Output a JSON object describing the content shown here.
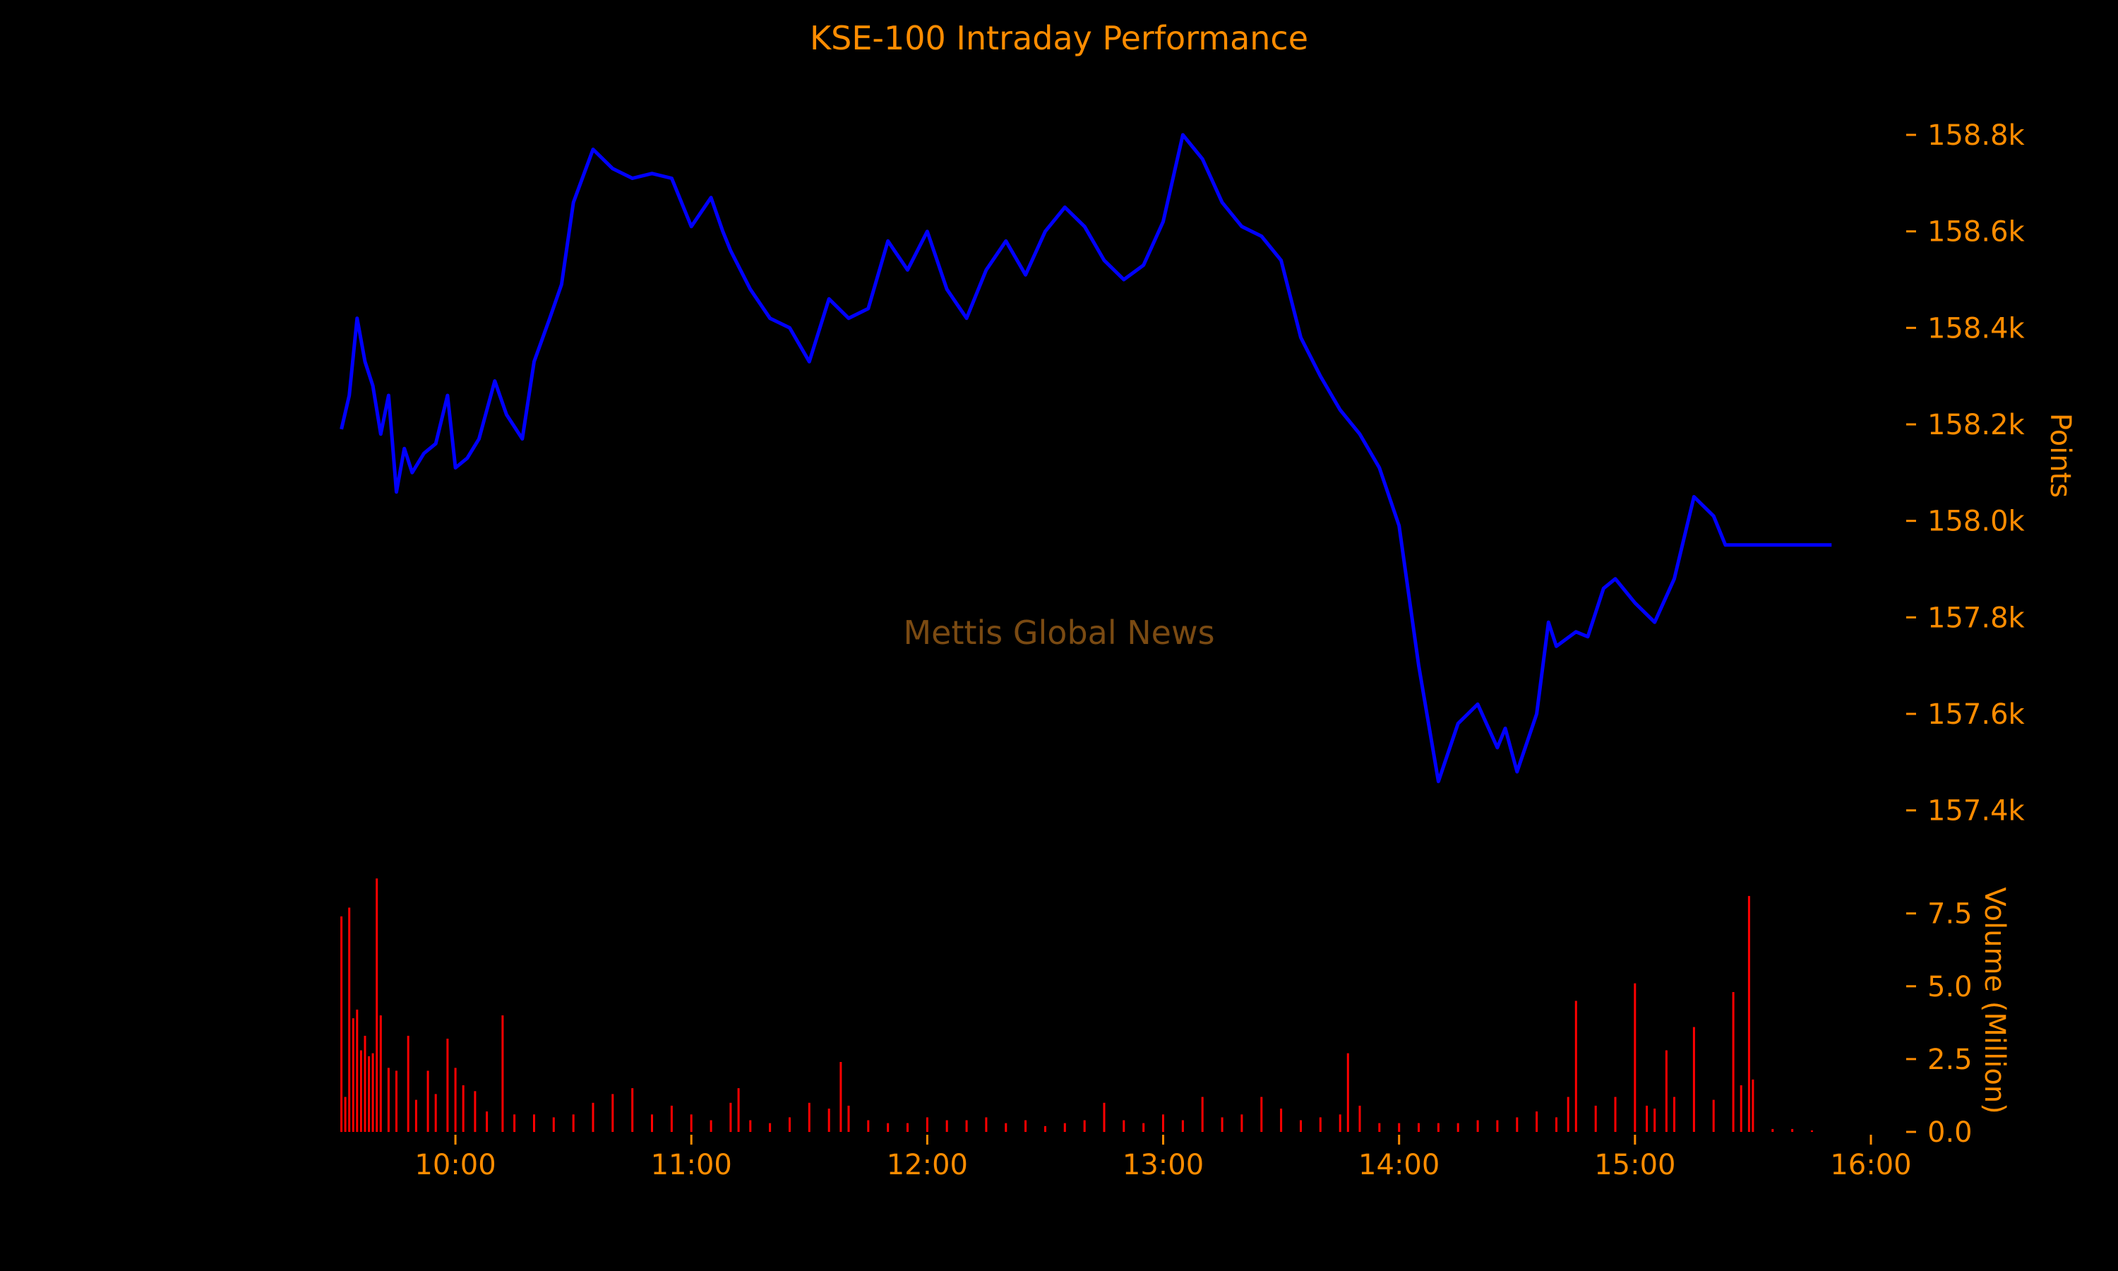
{
  "title": "KSE-100 Intraday Performance",
  "watermark": "Mettis Global News",
  "colors": {
    "background": "#000000",
    "text": "#ff8c00",
    "price_line": "#0000ff",
    "volume_bars": "#ff0000",
    "watermark": "#7a4a12"
  },
  "chart_data": [
    {
      "type": "line",
      "name": "price-panel",
      "ylabel": "Points",
      "ylim": [
        157360,
        158860
      ],
      "yticks": [
        157400,
        157600,
        157800,
        158000,
        158200,
        158400,
        158600,
        158800
      ],
      "ytick_labels": [
        "157.4k",
        "157.6k",
        "157.8k",
        "158.0k",
        "158.2k",
        "158.4k",
        "158.6k",
        "158.8k"
      ],
      "y_axis_side": "right",
      "grid": false,
      "series": [
        {
          "x": [
            "09:31",
            "09:33",
            "09:35",
            "09:37",
            "09:39",
            "09:41",
            "09:43",
            "09:45",
            "09:47",
            "09:49",
            "09:52",
            "09:55",
            "09:58",
            "10:00",
            "10:03",
            "10:06",
            "10:10",
            "10:13",
            "10:17",
            "10:20",
            "10:24",
            "10:27",
            "10:30",
            "10:35",
            "10:40",
            "10:45",
            "10:50",
            "10:55",
            "11:00",
            "11:05",
            "11:08",
            "11:10",
            "11:15",
            "11:20",
            "11:25",
            "11:30",
            "11:35",
            "11:40",
            "11:45",
            "11:50",
            "11:55",
            "12:00",
            "12:05",
            "12:10",
            "12:15",
            "12:20",
            "12:25",
            "12:30",
            "12:35",
            "12:40",
            "12:45",
            "12:50",
            "12:55",
            "13:00",
            "13:05",
            "13:10",
            "13:15",
            "13:20",
            "13:25",
            "13:30",
            "13:35",
            "13:40",
            "13:45",
            "13:50",
            "13:55",
            "14:00",
            "14:05",
            "14:10",
            "14:15",
            "14:20",
            "14:25",
            "14:27",
            "14:30",
            "14:35",
            "14:38",
            "14:40",
            "14:45",
            "14:48",
            "14:52",
            "14:55",
            "15:00",
            "15:05",
            "15:10",
            "15:15",
            "15:20",
            "15:23",
            "15:25",
            "15:27",
            "15:30",
            "15:33",
            "15:35",
            "15:40",
            "15:45",
            "15:50"
          ],
          "y": [
            158190,
            158260,
            158420,
            158330,
            158280,
            158180,
            158260,
            158060,
            158150,
            158100,
            158140,
            158160,
            158260,
            158110,
            158130,
            158170,
            158290,
            158220,
            158170,
            158330,
            158420,
            158490,
            158660,
            158770,
            158730,
            158710,
            158720,
            158710,
            158610,
            158670,
            158600,
            158560,
            158480,
            158420,
            158400,
            158330,
            158460,
            158420,
            158440,
            158580,
            158520,
            158600,
            158480,
            158420,
            158520,
            158580,
            158510,
            158600,
            158650,
            158610,
            158540,
            158500,
            158530,
            158620,
            158800,
            158750,
            158660,
            158610,
            158590,
            158540,
            158380,
            158300,
            158230,
            158180,
            158110,
            157990,
            157700,
            157460,
            157580,
            157620,
            157530,
            157570,
            157480,
            157600,
            157790,
            157740,
            157770,
            157760,
            157860,
            157880,
            157830,
            157790,
            157880,
            158050,
            158010,
            157950,
            157950,
            157950,
            157950,
            157950,
            157950,
            157950,
            157950,
            157950
          ]
        }
      ]
    },
    {
      "type": "bar",
      "name": "volume-panel",
      "ylabel": "Volume (Million)",
      "ylim": [
        0,
        8.8
      ],
      "yticks": [
        0,
        2.5,
        5.0,
        7.5
      ],
      "ytick_labels": [
        "0.0",
        "2.5",
        "5.0",
        "7.5"
      ],
      "y_axis_side": "right",
      "grid": false,
      "x_range": [
        "09:30",
        "16:00"
      ],
      "xticks": [
        "10:00",
        "11:00",
        "12:00",
        "13:00",
        "14:00",
        "15:00",
        "16:00"
      ],
      "xtick_labels": [
        "10:00",
        "11:00",
        "12:00",
        "13:00",
        "14:00",
        "15:00",
        "16:00"
      ],
      "series": [
        {
          "x": [
            "09:31",
            "09:32",
            "09:33",
            "09:34",
            "09:35",
            "09:36",
            "09:37",
            "09:38",
            "09:39",
            "09:40",
            "09:41",
            "09:43",
            "09:45",
            "09:48",
            "09:50",
            "09:53",
            "09:55",
            "09:58",
            "10:00",
            "10:02",
            "10:05",
            "10:08",
            "10:12",
            "10:15",
            "10:20",
            "10:25",
            "10:30",
            "10:35",
            "10:40",
            "10:45",
            "10:50",
            "10:55",
            "11:00",
            "11:05",
            "11:10",
            "11:12",
            "11:15",
            "11:20",
            "11:25",
            "11:30",
            "11:35",
            "11:38",
            "11:40",
            "11:45",
            "11:50",
            "11:55",
            "12:00",
            "12:05",
            "12:10",
            "12:15",
            "12:20",
            "12:25",
            "12:30",
            "12:35",
            "12:40",
            "12:45",
            "12:50",
            "12:55",
            "13:00",
            "13:05",
            "13:10",
            "13:15",
            "13:20",
            "13:25",
            "13:30",
            "13:35",
            "13:40",
            "13:45",
            "13:47",
            "13:50",
            "13:55",
            "14:00",
            "14:05",
            "14:10",
            "14:15",
            "14:20",
            "14:25",
            "14:30",
            "14:35",
            "14:40",
            "14:43",
            "14:45",
            "14:50",
            "14:55",
            "15:00",
            "15:03",
            "15:05",
            "15:08",
            "15:10",
            "15:15",
            "15:20",
            "15:25",
            "15:27",
            "15:29",
            "15:30",
            "15:35",
            "15:40",
            "15:45"
          ],
          "y": [
            7.4,
            1.2,
            7.7,
            3.9,
            4.2,
            2.8,
            3.3,
            2.6,
            2.7,
            8.7,
            4.0,
            2.2,
            2.1,
            3.3,
            1.1,
            2.1,
            1.3,
            3.2,
            2.2,
            1.6,
            1.4,
            0.7,
            4.0,
            0.6,
            0.6,
            0.5,
            0.6,
            1.0,
            1.3,
            1.5,
            0.6,
            0.9,
            0.6,
            0.4,
            1.0,
            1.5,
            0.4,
            0.3,
            0.5,
            1.0,
            0.8,
            2.4,
            0.9,
            0.4,
            0.3,
            0.3,
            0.5,
            0.4,
            0.4,
            0.5,
            0.3,
            0.4,
            0.2,
            0.3,
            0.4,
            1.0,
            0.4,
            0.3,
            0.6,
            0.4,
            1.2,
            0.5,
            0.6,
            1.2,
            0.8,
            0.4,
            0.5,
            0.6,
            2.7,
            0.9,
            0.3,
            0.3,
            0.3,
            0.3,
            0.3,
            0.4,
            0.4,
            0.5,
            0.7,
            0.5,
            1.2,
            4.5,
            0.9,
            1.2,
            5.1,
            0.9,
            0.8,
            2.8,
            1.2,
            3.6,
            1.1,
            4.8,
            1.6,
            8.1,
            1.8,
            0.1,
            0.1,
            0.05
          ]
        }
      ]
    }
  ]
}
